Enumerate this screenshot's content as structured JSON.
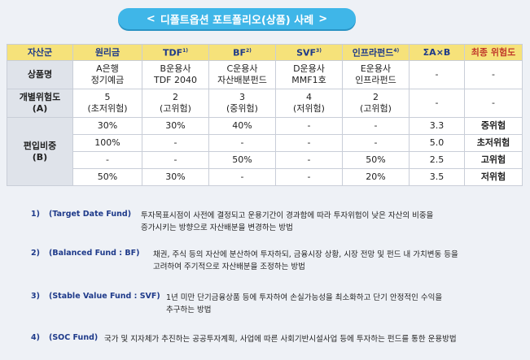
{
  "title": "디폴트옵션 포트폴리오(상품) 사례",
  "title_left_glyph": "<",
  "title_right_glyph": ">",
  "table": {
    "headers": [
      {
        "label": "자산군",
        "sup": ""
      },
      {
        "label": "원리금",
        "sup": ""
      },
      {
        "label": "TDF",
        "sup": "1)"
      },
      {
        "label": "BF",
        "sup": "2)"
      },
      {
        "label": "SVF",
        "sup": "3)"
      },
      {
        "label": "인프라펀드",
        "sup": "4)"
      },
      {
        "label": "ΣA×B",
        "sup": ""
      },
      {
        "label": "최종 위험도",
        "sup": ""
      }
    ],
    "product_row": {
      "label": "상품명",
      "cells": [
        [
          "A은행",
          "정기예금"
        ],
        [
          "B운용사",
          "TDF 2040"
        ],
        [
          "C운용사",
          "자산배분펀드"
        ],
        [
          "D운용사",
          "MMF1호"
        ],
        [
          "E운용사",
          "인프라펀드"
        ],
        [
          "-"
        ],
        [
          "-"
        ]
      ]
    },
    "risk_row": {
      "label": [
        "개별위험도",
        "(A)"
      ],
      "cells": [
        [
          "5",
          "(초저위험)"
        ],
        [
          "2",
          "(고위험)"
        ],
        [
          "3",
          "(중위험)"
        ],
        [
          "4",
          "(저위험)"
        ],
        [
          "2",
          "(고위험)"
        ],
        [
          "-"
        ],
        [
          "-"
        ]
      ]
    },
    "weight_label": [
      "편입비중",
      "(B)"
    ],
    "weight_rows": [
      [
        "30%",
        "30%",
        "40%",
        "-",
        "-",
        "3.3",
        "중위험"
      ],
      [
        "100%",
        "-",
        "-",
        "-",
        "-",
        "5.0",
        "초저위험"
      ],
      [
        "-",
        "-",
        "50%",
        "-",
        "50%",
        "2.5",
        "고위험"
      ],
      [
        "50%",
        "30%",
        "-",
        "-",
        "20%",
        "3.5",
        "저위험"
      ]
    ]
  },
  "notes": [
    {
      "num": "1)",
      "term": "(Target Date Fund)",
      "lines": [
        "투자목표시점이 사전에 결정되고 운용기간이 경과함에 따라 투자위험이 낮은 자산의 비중을",
        "증가시키는 방향으로 자산배분을 변경하는 방법"
      ]
    },
    {
      "num": "2)",
      "term": "(Balanced Fund : BF)",
      "lines": [
        "채권, 주식 등의 자산에 분산하여 투자하되, 금융시장 상황, 시장 전망 및 펀드 내 가치변동 등을",
        "고려하여 주기적으로 자산배분을 조정하는 방법"
      ]
    },
    {
      "num": "3)",
      "term": "(Stable Value Fund : SVF)",
      "lines": [
        "1년 미만 단기금융상품 등에 투자하여 손실가능성을 최소화하고 단기 안정적인 수익을",
        "추구하는 방법"
      ]
    },
    {
      "num": "4)",
      "term": "(SOC Fund)",
      "lines": [
        "국가 및 지자체가 추진하는 공공투자계획, 사업에 따른 사회기반시설사업 등에 투자하는 펀드를 통한 운용방법"
      ]
    }
  ]
}
